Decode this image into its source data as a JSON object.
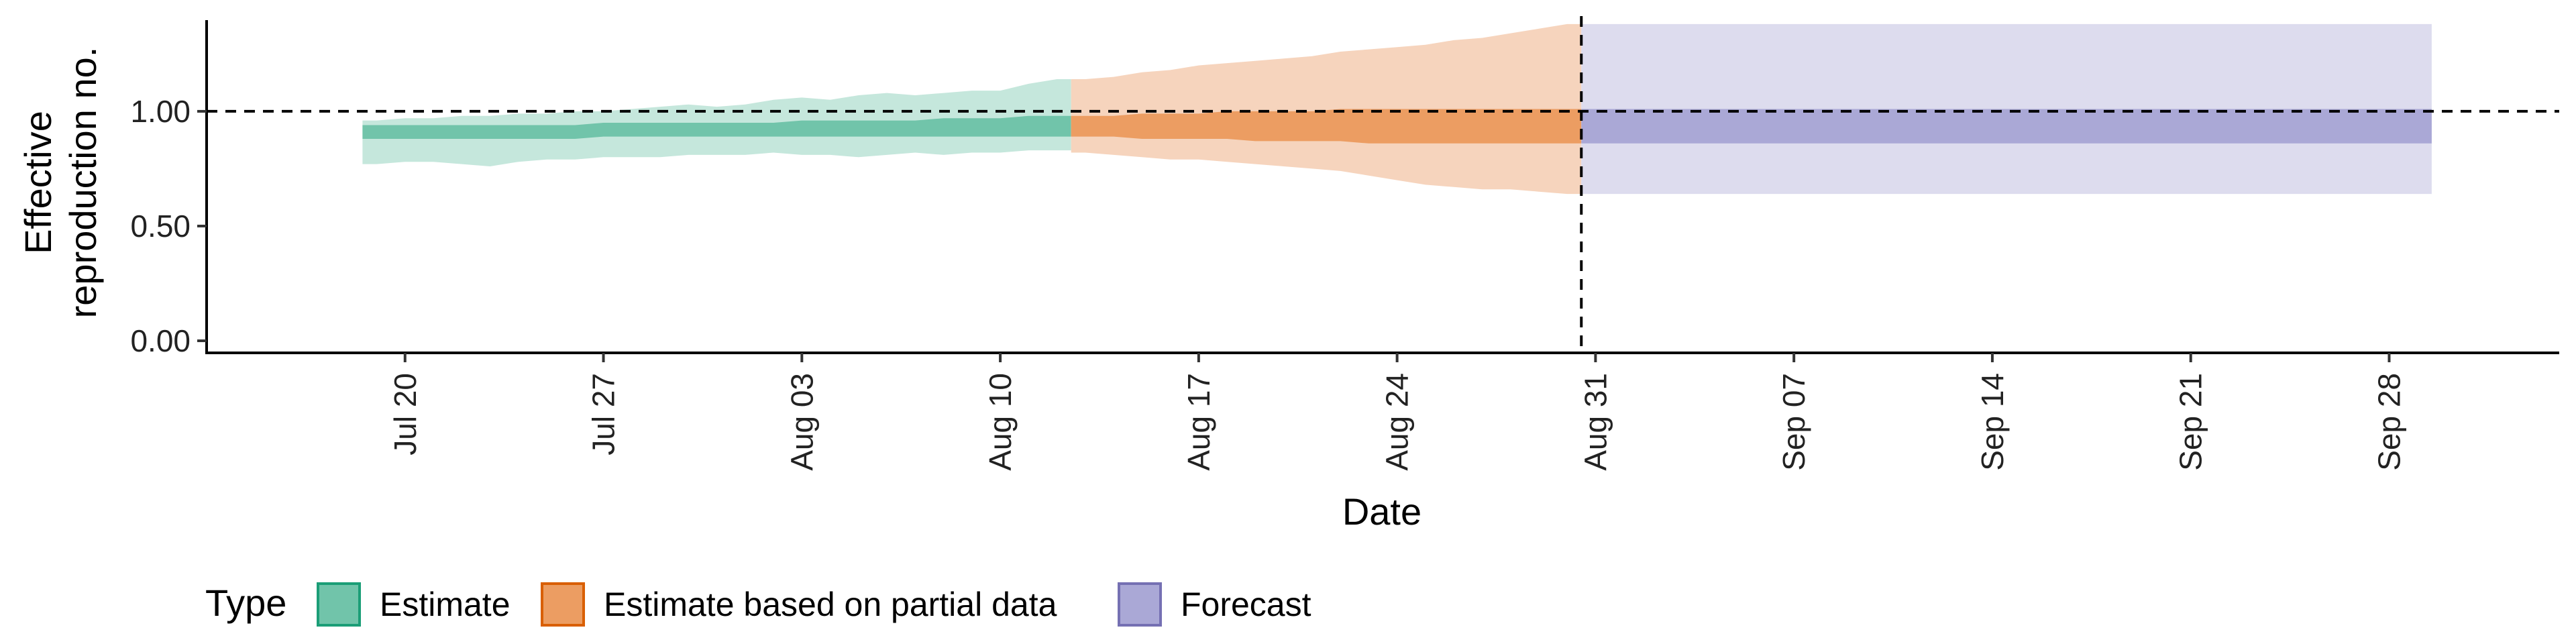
{
  "chart_data": {
    "type": "area",
    "title": "",
    "xlabel": "Date",
    "ylabel": [
      "Effective",
      "reproduction no."
    ],
    "ylim": [
      0,
      1.45
    ],
    "yticks": [
      0,
      0.5,
      1,
      1.5
    ],
    "ytick_labels": [
      "0.00",
      "0.50",
      "1.00",
      ""
    ],
    "reference_hline": 1.0,
    "reference_vline_date": "2020-08-30",
    "xlim_dates": [
      "2020-07-13",
      "2020-10-04"
    ],
    "xticks": [
      {
        "date": "2020-07-20",
        "label": "Jul 20"
      },
      {
        "date": "2020-07-27",
        "label": "Jul 27"
      },
      {
        "date": "2020-08-03",
        "label": "Aug 03"
      },
      {
        "date": "2020-08-10",
        "label": "Aug 10"
      },
      {
        "date": "2020-08-17",
        "label": "Aug 17"
      },
      {
        "date": "2020-08-24",
        "label": "Aug 24"
      },
      {
        "date": "2020-08-31",
        "label": "Aug 31"
      },
      {
        "date": "2020-09-07",
        "label": "Sep 07"
      },
      {
        "date": "2020-09-14",
        "label": "Sep 14"
      },
      {
        "date": "2020-09-21",
        "label": "Sep 21"
      },
      {
        "date": "2020-09-28",
        "label": "Sep 28"
      }
    ],
    "grid": false,
    "legend": {
      "title": "Type",
      "position": "bottom-left",
      "entries": [
        {
          "label": "Estimate",
          "fill": "#71c4aa",
          "stroke": "#1b9e77"
        },
        {
          "label": "Estimate based on partial data",
          "fill": "#ec9d62",
          "stroke": "#d95f02"
        },
        {
          "label": "Forecast",
          "fill": "#aaa8d6",
          "stroke": "#7570b3"
        }
      ]
    },
    "series": [
      {
        "name": "Estimate",
        "color_outer": "#c5e7dc",
        "color_inner": "#71c4aa",
        "x": [
          "2020-07-19",
          "2020-07-20",
          "2020-07-21",
          "2020-07-22",
          "2020-07-23",
          "2020-07-24",
          "2020-07-25",
          "2020-07-26",
          "2020-07-27",
          "2020-07-28",
          "2020-07-29",
          "2020-07-30",
          "2020-07-31",
          "2020-08-01",
          "2020-08-02",
          "2020-08-03",
          "2020-08-04",
          "2020-08-05",
          "2020-08-06",
          "2020-08-07",
          "2020-08-08",
          "2020-08-09",
          "2020-08-10",
          "2020-08-11",
          "2020-08-12"
        ],
        "outer_lower": [
          0.77,
          0.78,
          0.78,
          0.77,
          0.76,
          0.78,
          0.79,
          0.79,
          0.8,
          0.8,
          0.8,
          0.81,
          0.81,
          0.81,
          0.82,
          0.81,
          0.81,
          0.8,
          0.81,
          0.82,
          0.81,
          0.82,
          0.82,
          0.83,
          0.83
        ],
        "outer_upper": [
          0.96,
          0.97,
          0.97,
          0.98,
          0.98,
          0.99,
          0.99,
          1.0,
          1.0,
          1.01,
          1.02,
          1.03,
          1.02,
          1.03,
          1.05,
          1.06,
          1.05,
          1.07,
          1.08,
          1.07,
          1.08,
          1.09,
          1.09,
          1.12,
          1.14
        ],
        "inner_lower": [
          0.88,
          0.88,
          0.88,
          0.88,
          0.88,
          0.88,
          0.88,
          0.88,
          0.89,
          0.89,
          0.89,
          0.89,
          0.89,
          0.89,
          0.89,
          0.89,
          0.89,
          0.89,
          0.89,
          0.89,
          0.89,
          0.89,
          0.89,
          0.89,
          0.89
        ],
        "inner_upper": [
          0.94,
          0.94,
          0.94,
          0.94,
          0.94,
          0.94,
          0.94,
          0.94,
          0.95,
          0.95,
          0.95,
          0.95,
          0.95,
          0.95,
          0.95,
          0.96,
          0.96,
          0.96,
          0.96,
          0.96,
          0.97,
          0.97,
          0.97,
          0.98,
          0.98
        ]
      },
      {
        "name": "Estimate based on partial data",
        "color_outer": "#f6d4bd",
        "color_inner": "#ec9d62",
        "x": [
          "2020-08-13",
          "2020-08-14",
          "2020-08-15",
          "2020-08-16",
          "2020-08-17",
          "2020-08-18",
          "2020-08-19",
          "2020-08-20",
          "2020-08-21",
          "2020-08-22",
          "2020-08-23",
          "2020-08-24",
          "2020-08-25",
          "2020-08-26",
          "2020-08-27",
          "2020-08-28",
          "2020-08-29",
          "2020-08-30"
        ],
        "outer_lower": [
          0.82,
          0.81,
          0.8,
          0.79,
          0.79,
          0.78,
          0.77,
          0.76,
          0.75,
          0.74,
          0.72,
          0.7,
          0.68,
          0.67,
          0.66,
          0.66,
          0.65,
          0.64
        ],
        "outer_upper": [
          1.14,
          1.15,
          1.17,
          1.18,
          1.2,
          1.21,
          1.22,
          1.23,
          1.24,
          1.26,
          1.27,
          1.28,
          1.29,
          1.31,
          1.32,
          1.34,
          1.36,
          1.38
        ],
        "inner_lower": [
          0.89,
          0.89,
          0.88,
          0.88,
          0.88,
          0.88,
          0.87,
          0.87,
          0.87,
          0.87,
          0.86,
          0.86,
          0.86,
          0.86,
          0.86,
          0.86,
          0.86,
          0.86
        ],
        "inner_upper": [
          0.98,
          0.98,
          0.99,
          0.99,
          0.99,
          1.0,
          1.0,
          1.0,
          1.0,
          1.01,
          1.01,
          1.01,
          1.01,
          1.01,
          1.01,
          1.01,
          1.01,
          1.01
        ]
      },
      {
        "name": "Forecast",
        "color_outer": "#dddcee",
        "color_inner": "#aaa8d6",
        "x": [
          "2020-08-31",
          "2020-09-29"
        ],
        "outer_lower": [
          0.64,
          0.64
        ],
        "outer_upper": [
          1.38,
          1.38
        ],
        "inner_lower": [
          0.86,
          0.86
        ],
        "inner_upper": [
          1.01,
          1.01
        ]
      }
    ]
  }
}
